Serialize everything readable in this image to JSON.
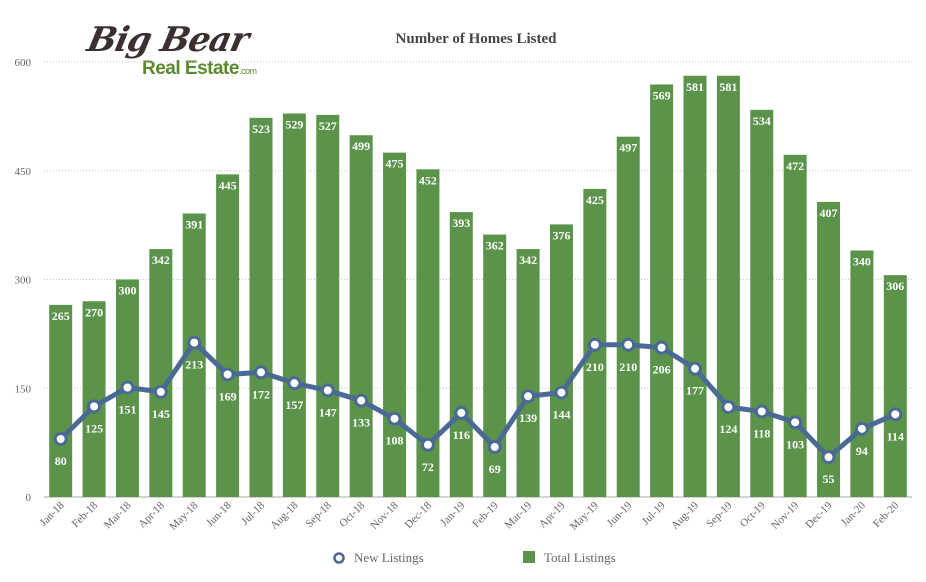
{
  "logo": {
    "script": "Big Bear",
    "sub": "Real Estate",
    "dotcom": ".com"
  },
  "colors": {
    "bars": "#5b934b",
    "line": "#4a6a94",
    "grid": "#c8c8c8",
    "text": "#555555"
  },
  "chart_data": {
    "type": "bar",
    "title": "Number of Homes Listed",
    "xlabel": "",
    "ylabel": "",
    "ylim": [
      0,
      600
    ],
    "yticks": [
      0,
      150,
      300,
      450,
      600
    ],
    "grid": true,
    "legend": "bottom",
    "categories": [
      "Jan-18",
      "Feb-18",
      "Mar-18",
      "Apr-18",
      "May-18",
      "Jun-18",
      "Jul-18",
      "Aug-18",
      "Sep-18",
      "Oct-18",
      "Nov-18",
      "Dec-18",
      "Jan-19",
      "Feb-19",
      "Mar-19",
      "Apr-19",
      "May-19",
      "Jun-19",
      "Jul-19",
      "Aug-19",
      "Sep-19",
      "Oct-19",
      "Nov-19",
      "Dec-19",
      "Jan-20",
      "Feb-20"
    ],
    "series": [
      {
        "name": "Total Listings",
        "type": "bar",
        "values": [
          265,
          270,
          300,
          342,
          391,
          445,
          523,
          529,
          527,
          499,
          475,
          452,
          393,
          362,
          342,
          376,
          425,
          497,
          569,
          581,
          581,
          534,
          472,
          407,
          340,
          306
        ]
      },
      {
        "name": "New Listings",
        "type": "line",
        "values": [
          80,
          125,
          151,
          145,
          213,
          169,
          172,
          157,
          147,
          133,
          108,
          72,
          116,
          69,
          139,
          144,
          210,
          210,
          206,
          177,
          124,
          118,
          103,
          55,
          94,
          114
        ]
      }
    ]
  }
}
